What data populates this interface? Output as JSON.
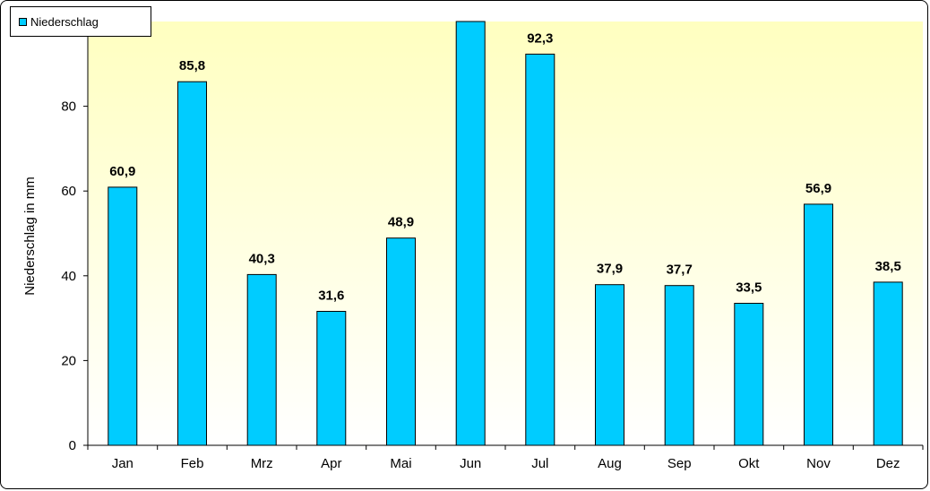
{
  "chart_data": {
    "type": "bar",
    "categories": [
      "Jan",
      "Feb",
      "Mrz",
      "Apr",
      "Mai",
      "Jun",
      "Jul",
      "Aug",
      "Sep",
      "Okt",
      "Nov",
      "Dez"
    ],
    "series": [
      {
        "name": "Niederschlag",
        "values": [
          60.9,
          85.8,
          40.3,
          31.6,
          48.9,
          100,
          92.3,
          37.9,
          37.7,
          33.5,
          56.9,
          38.5
        ],
        "data_labels": [
          "60,9",
          "85,8",
          "40,3",
          "31,6",
          "48,9",
          "",
          "92,3",
          "37,9",
          "37,7",
          "33,5",
          "56,9",
          "38,5"
        ],
        "color": "#00CCFF"
      }
    ],
    "title": "",
    "xlabel": "",
    "ylabel": "Niederschlag in mm",
    "ylim": [
      0,
      100
    ],
    "yticks": [
      0,
      20,
      40,
      60,
      80
    ],
    "grid": false,
    "legend_position": "top-left",
    "plot_background": "gradient-yellow"
  }
}
